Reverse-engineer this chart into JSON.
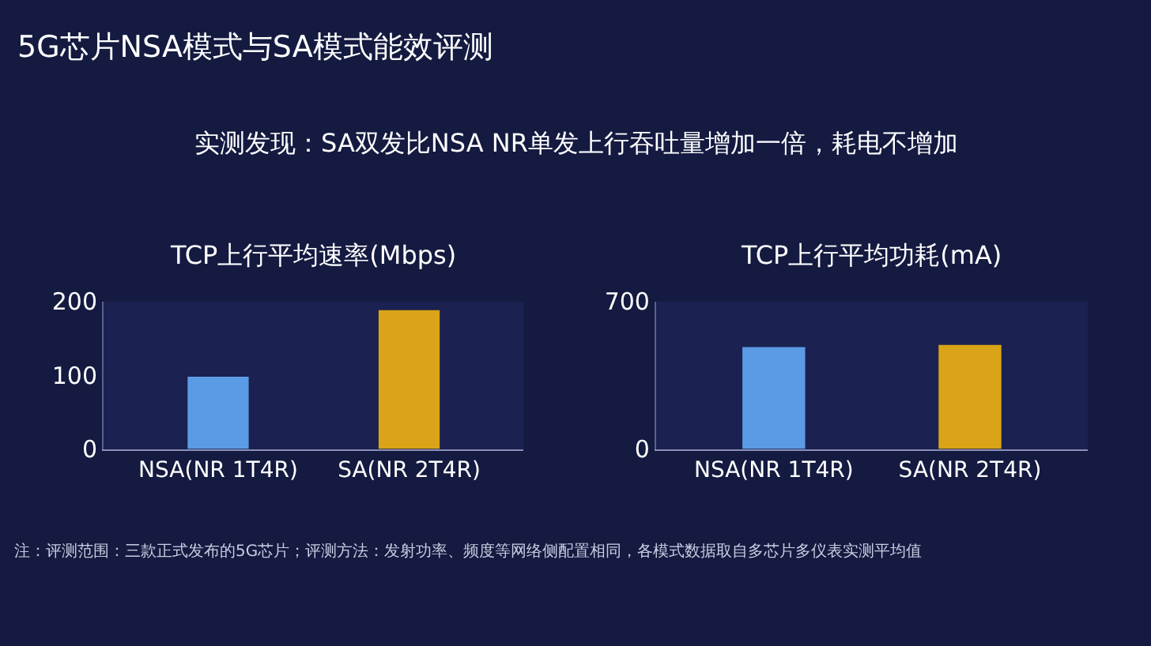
{
  "chart_data": [
    {
      "type": "other",
      "title": "5G芯片NSA模式与SA模式能效评测",
      "subtitle": "实测发现：SA双发比NSA NR单发上行吞吐量增加一倍，耗电不增加",
      "annotations": [
        "注：评测范围：三款正式发布的5G芯片；评测方法：发射功率、频度等网络侧配置相同，各模式数据取自多芯片多仪表实测平均值"
      ]
    },
    {
      "type": "bar",
      "title": "TCP上行平均速率(Mbps)",
      "categories": [
        "NSA(NR 1T4R)",
        "SA(NR 2T4R)"
      ],
      "values": [
        98,
        188
      ],
      "colors": [
        "#5b9be6",
        "#d9a417"
      ],
      "ylim": [
        0,
        200
      ],
      "yticks": [
        0,
        100,
        200
      ],
      "grid": false
    },
    {
      "type": "bar",
      "title": "TCP上行平均功耗(mA)",
      "categories": [
        "NSA(NR 1T4R)",
        "SA(NR 2T4R)"
      ],
      "values": [
        483,
        494
      ],
      "colors": [
        "#5b9be6",
        "#d9a417"
      ],
      "ylim": [
        0,
        700
      ],
      "yticks": [
        0,
        700
      ],
      "grid": false
    }
  ]
}
